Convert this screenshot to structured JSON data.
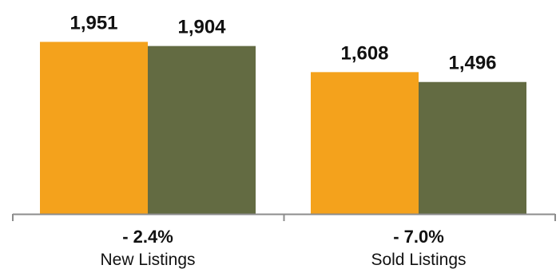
{
  "chart_data": {
    "type": "bar",
    "categories": [
      "New Listings",
      "Sold Listings"
    ],
    "changes": [
      "- 2.4%",
      "- 7.0%"
    ],
    "series": [
      {
        "values": [
          1951,
          1608
        ],
        "value_labels": [
          "1,951",
          "1,608"
        ],
        "color": "#f4a21c"
      },
      {
        "values": [
          1904,
          1496
        ],
        "value_labels": [
          "1,904",
          "1,496"
        ],
        "color": "#636b42"
      }
    ],
    "ylim": [
      0,
      2100
    ],
    "grid": false,
    "axis_color": "#8c8c8c"
  }
}
